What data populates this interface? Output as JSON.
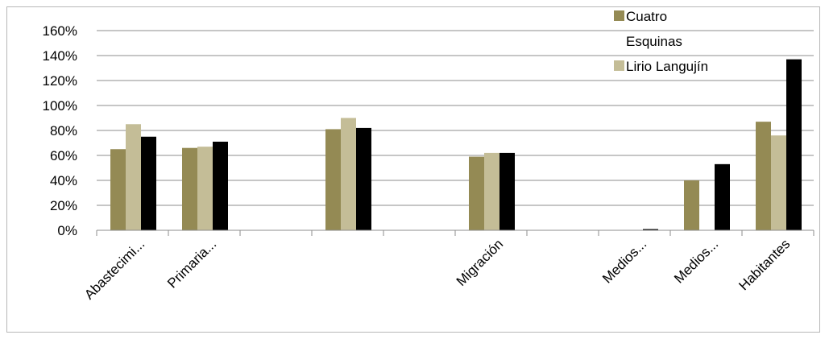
{
  "chart_data": {
    "type": "bar",
    "categories": [
      "Abastecimi...",
      "Primaria...",
      "",
      "",
      "",
      "Migración",
      "",
      "Medios...",
      "Medios...",
      "Habitantes"
    ],
    "series": [
      {
        "name": "Cuatro Esquinas",
        "color": "#948a54",
        "values": [
          65,
          66,
          0,
          81,
          0,
          59,
          0,
          0,
          40,
          87
        ]
      },
      {
        "name": "Lirio Langujín",
        "color": "#c4bd97",
        "values": [
          85,
          67,
          0,
          90,
          0,
          62,
          0,
          0,
          0,
          76
        ]
      },
      {
        "name": "",
        "color": "#000000",
        "values": [
          75,
          71,
          0,
          82,
          0,
          62,
          0,
          1,
          53,
          137
        ]
      }
    ],
    "ylim": [
      0,
      160
    ],
    "yticks": [
      "0%",
      "20%",
      "40%",
      "60%",
      "80%",
      "100%",
      "120%",
      "140%",
      "160%"
    ],
    "grid": true,
    "legend": {
      "position": "top-right",
      "entries": [
        {
          "lines": [
            "Cuatro",
            "Esquinas"
          ],
          "color": "#948a54"
        },
        {
          "lines": [
            "Lirio Langujín"
          ],
          "color": "#c4bd97"
        }
      ]
    }
  }
}
